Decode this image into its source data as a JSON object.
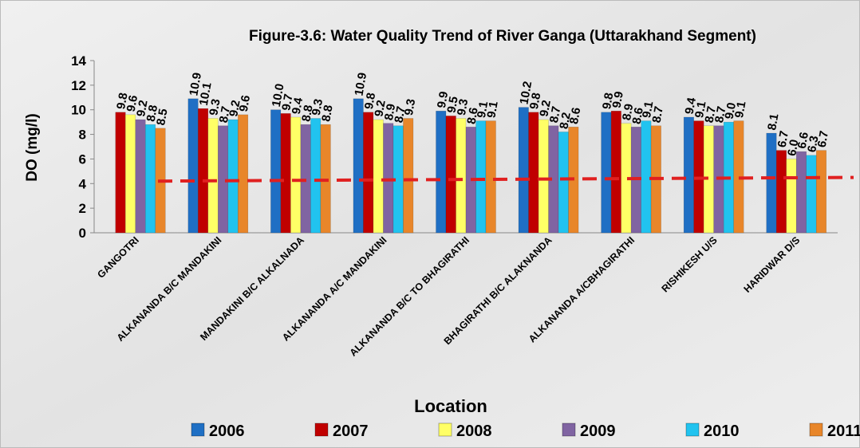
{
  "chart_data": {
    "type": "bar",
    "title": "Figure-3.6: Water Quality Trend of River Ganga (Uttarakhand Segment)",
    "y_label": "DO (mg/l)",
    "x_label": "Location",
    "categories": [
      "GANGOTRI",
      "ALKANANDA B/C MANDAKINI",
      "MANDAKINI B/C ALKALNADA",
      "ALKANANDA A/C MANDAKINI",
      "ALKANANDA B/C TO BHAGIRATHI",
      "BHAGIRATHI B/C  ALAKNANDA",
      "ALKANANDA A/CBHAGIRATHI",
      "RISHIKESH U/S",
      "HARIDWAR D/S"
    ],
    "series": [
      {
        "name": "2006",
        "color": "#1f6fc4",
        "values": [
          null,
          10.9,
          10.0,
          10.9,
          9.9,
          10.2,
          9.8,
          9.4,
          8.1
        ],
        "value_labels": [
          null,
          "10.9",
          "10.0",
          "10.9",
          "9.9",
          "10.2",
          "9.8",
          "9.4",
          "8.1"
        ]
      },
      {
        "name": "2007",
        "color": "#c00000",
        "values": [
          9.8,
          10.1,
          9.7,
          9.8,
          9.5,
          9.8,
          9.9,
          9.1,
          6.7
        ],
        "value_labels": [
          "9.8",
          "10.1",
          "9.7",
          "9.8",
          "9.5",
          "9.8",
          "9.9",
          "9.1",
          "6.7"
        ]
      },
      {
        "name": "2008",
        "color": "#ffff66",
        "values": [
          9.6,
          9.3,
          9.4,
          9.2,
          9.3,
          9.2,
          8.9,
          8.7,
          6.0
        ],
        "value_labels": [
          "9.6",
          "9.3",
          "9.4",
          "9.2",
          "9.3",
          "9.2",
          "8.9",
          "8.7",
          "6.0"
        ]
      },
      {
        "name": "2009",
        "color": "#8064a2",
        "values": [
          9.2,
          8.7,
          8.8,
          8.9,
          8.6,
          8.7,
          8.6,
          8.7,
          6.6
        ],
        "value_labels": [
          "9.2",
          "8.7",
          "8.8",
          "8.9",
          "8.6",
          "8.7",
          "8.6",
          "8.7",
          "6.6"
        ]
      },
      {
        "name": "2010",
        "color": "#21c3ef",
        "values": [
          8.8,
          9.2,
          9.3,
          8.7,
          9.1,
          8.2,
          9.1,
          9.0,
          6.3
        ],
        "value_labels": [
          "8.8",
          "9.2",
          "9.3",
          "8.7",
          "9.1",
          "8.2",
          "9.1",
          "9.0",
          "6.3"
        ]
      },
      {
        "name": "2011",
        "color": "#e8862a",
        "values": [
          8.5,
          9.6,
          8.8,
          9.3,
          9.1,
          8.6,
          8.7,
          9.1,
          6.7
        ],
        "value_labels": [
          "8.5",
          "9.6",
          "8.8",
          "9.3",
          "9.1",
          "8.6",
          "8.7",
          "9.1",
          "6.7"
        ]
      }
    ],
    "reference_line": {
      "values": [
        4.2,
        4.5
      ],
      "color": "#e02020"
    },
    "ylim": [
      0,
      14
    ],
    "yticks": [
      0,
      2,
      4,
      6,
      8,
      10,
      12,
      14
    ],
    "legend": "bottom"
  }
}
